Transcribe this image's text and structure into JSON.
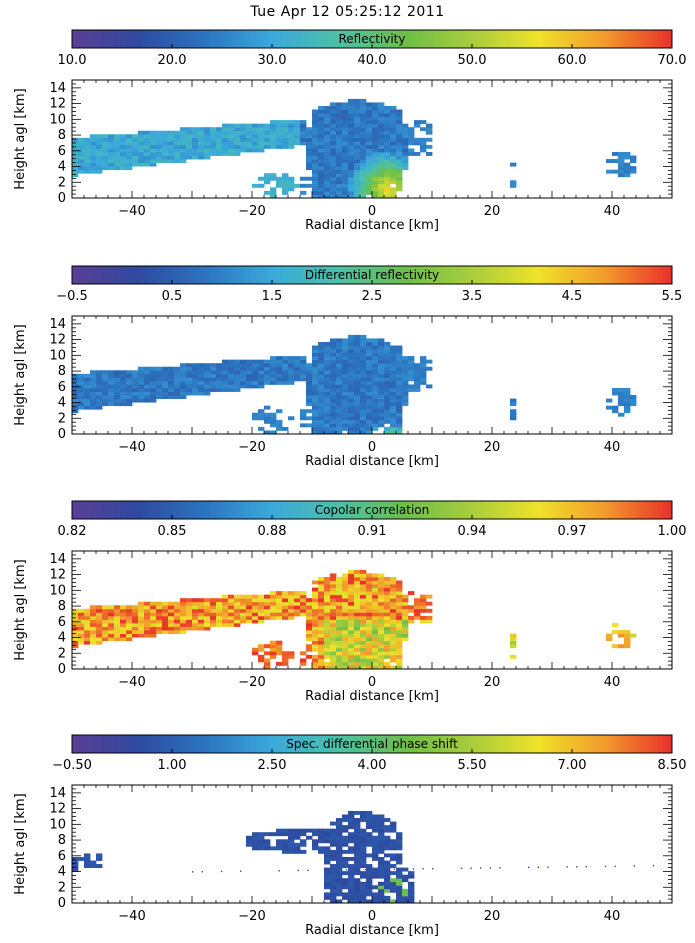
{
  "title": "Tue Apr 12 05:25:12 2011",
  "colormap": [
    "#5b3f95",
    "#2e4aa0",
    "#2c74c0",
    "#3aa9dc",
    "#4cc0a8",
    "#6cbf4a",
    "#a9cd3c",
    "#efe22a",
    "#f29a2c",
    "#e8302a"
  ],
  "chart_data": [
    {
      "type": "heatmap",
      "colorbar_label": "Reflectivity",
      "colorbar_ticks": [
        "10.0",
        "20.0",
        "30.0",
        "40.0",
        "50.0",
        "60.0",
        "70.0"
      ],
      "xlabel": "Radial distance [km]",
      "ylabel": "Height agl [km]",
      "xlim": [
        -50,
        50
      ],
      "ylim": [
        0,
        15
      ],
      "x_ticks": [
        -40,
        -20,
        0,
        20,
        40
      ],
      "x_tick_labels": [
        "−40",
        "−20",
        "0",
        "20",
        "40"
      ],
      "y_ticks": [
        0,
        2,
        4,
        6,
        8,
        10,
        12,
        14
      ],
      "y_tick_labels": [
        "0",
        "2",
        "4",
        "6",
        "8",
        "10",
        "12",
        "14"
      ]
    },
    {
      "type": "heatmap",
      "colorbar_label": "Differential reflectivity",
      "colorbar_ticks": [
        "−0.5",
        "0.5",
        "1.5",
        "2.5",
        "3.5",
        "4.5",
        "5.5"
      ],
      "xlabel": "Radial distance [km]",
      "ylabel": "Height agl [km]",
      "xlim": [
        -50,
        50
      ],
      "ylim": [
        0,
        15
      ],
      "x_ticks": [
        -40,
        -20,
        0,
        20,
        40
      ],
      "x_tick_labels": [
        "−40",
        "−20",
        "0",
        "20",
        "40"
      ],
      "y_ticks": [
        0,
        2,
        4,
        6,
        8,
        10,
        12,
        14
      ],
      "y_tick_labels": [
        "0",
        "2",
        "4",
        "6",
        "8",
        "10",
        "12",
        "14"
      ]
    },
    {
      "type": "heatmap",
      "colorbar_label": "Copolar correlation",
      "colorbar_ticks": [
        "0.82",
        "0.85",
        "0.88",
        "0.91",
        "0.94",
        "0.97",
        "1.00"
      ],
      "xlabel": "Radial distance [km]",
      "ylabel": "Height agl [km]",
      "xlim": [
        -50,
        50
      ],
      "ylim": [
        0,
        15
      ],
      "x_ticks": [
        -40,
        -20,
        0,
        20,
        40
      ],
      "x_tick_labels": [
        "−40",
        "−20",
        "0",
        "20",
        "40"
      ],
      "y_ticks": [
        0,
        2,
        4,
        6,
        8,
        10,
        12,
        14
      ],
      "y_tick_labels": [
        "0",
        "2",
        "4",
        "6",
        "8",
        "10",
        "12",
        "14"
      ]
    },
    {
      "type": "heatmap",
      "colorbar_label": "Spec. differential phase shift",
      "colorbar_ticks": [
        "−0.50",
        "1.00",
        "2.50",
        "4.00",
        "5.50",
        "7.00",
        "8.50"
      ],
      "xlabel": "Radial distance [km]",
      "ylabel": "Height agl [km]",
      "xlim": [
        -50,
        50
      ],
      "ylim": [
        0,
        15
      ],
      "x_ticks": [
        -40,
        -20,
        0,
        20,
        40
      ],
      "x_tick_labels": [
        "−40",
        "−20",
        "0",
        "20",
        "40"
      ],
      "y_ticks": [
        0,
        2,
        4,
        6,
        8,
        10,
        12,
        14
      ],
      "y_tick_labels": [
        "0",
        "2",
        "4",
        "6",
        "8",
        "10",
        "12",
        "14"
      ]
    }
  ]
}
